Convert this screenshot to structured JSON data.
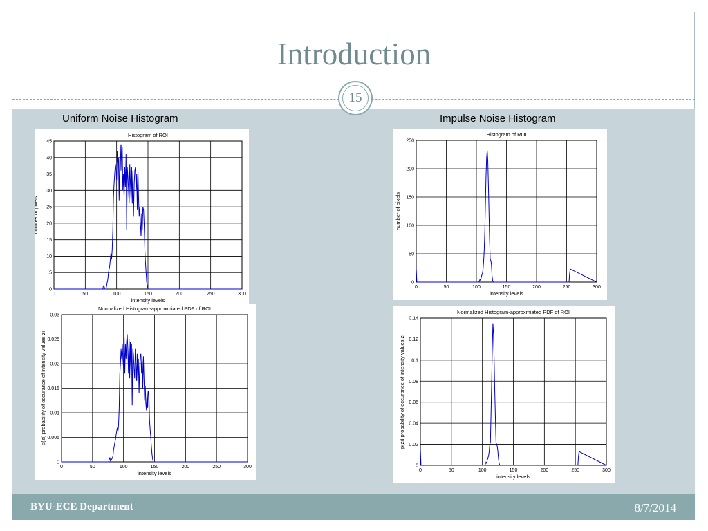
{
  "slide": {
    "title": "Introduction",
    "slide_number": "15",
    "footer_left": "BYU-ECE Department",
    "footer_right": "8/7/2014"
  },
  "panels": {
    "left_title": "Uniform Noise Histogram",
    "right_title": "Impulse Noise Histogram"
  },
  "colors": {
    "accent": "#8aa9ad",
    "title": "#6f8b90",
    "content_bg": "#c7d4d9",
    "series": "#0000cc"
  },
  "chart_data": [
    {
      "type": "line",
      "title": "Histogram of ROI",
      "xlabel": "intensity levels",
      "ylabel": "number of pixels",
      "xlim": [
        0,
        300
      ],
      "ylim": [
        0,
        45
      ],
      "xticks": [
        0,
        50,
        100,
        150,
        200,
        250,
        300
      ],
      "yticks": [
        0,
        5,
        10,
        15,
        20,
        25,
        30,
        35,
        40,
        45
      ],
      "grid": true,
      "series": [
        {
          "x": [
            0,
            78,
            79,
            80,
            81,
            83,
            84,
            85,
            86,
            87,
            88,
            89,
            90,
            91,
            92,
            93,
            94,
            95,
            96,
            97,
            98,
            99,
            100,
            101,
            102,
            103,
            104,
            105,
            106,
            107,
            108,
            109,
            110,
            111,
            112,
            113,
            114,
            115,
            116,
            117,
            118,
            119,
            120,
            121,
            122,
            123,
            124,
            125,
            126,
            127,
            128,
            129,
            130,
            131,
            132,
            133,
            134,
            135,
            136,
            137,
            138,
            139,
            140,
            141,
            142,
            143,
            144,
            145,
            146,
            147,
            148,
            149,
            150,
            151,
            300
          ],
          "y": [
            0,
            0,
            1,
            1,
            0,
            0,
            1,
            2,
            3,
            5,
            6,
            7,
            9,
            11,
            9,
            12,
            18,
            28,
            32,
            35,
            38,
            36,
            33,
            42,
            38,
            40,
            27,
            39,
            44,
            36,
            44,
            43,
            30,
            35,
            28,
            37,
            31,
            41,
            18,
            37,
            34,
            30,
            26,
            38,
            32,
            27,
            37,
            26,
            36,
            22,
            32,
            36,
            37,
            30,
            35,
            24,
            36,
            28,
            22,
            25,
            20,
            16,
            23,
            18,
            25,
            24,
            19,
            12,
            8,
            5,
            2,
            1,
            0,
            0,
            0
          ]
        }
      ]
    },
    {
      "type": "line",
      "title": "Normalized Histogram-approxmiated PDF of ROI",
      "xlabel": "intensity levels",
      "ylabel": "p(zi) probability of occurance of intensity values zi",
      "xlim": [
        0,
        300
      ],
      "ylim": [
        0,
        0.03
      ],
      "xticks": [
        0,
        50,
        100,
        150,
        200,
        250,
        300
      ],
      "yticks": [
        0,
        0.005,
        0.01,
        0.015,
        0.02,
        0.025,
        0.03
      ],
      "ytick_labels": [
        "0",
        "0.005",
        "0.01",
        "0.015",
        "0.02",
        "0.025",
        "0.03"
      ],
      "grid": true,
      "series": [
        {
          "x": [
            0,
            76,
            77,
            78,
            79,
            80,
            82,
            83,
            84,
            85,
            86,
            87,
            88,
            89,
            90,
            91,
            92,
            93,
            94,
            95,
            96,
            97,
            98,
            99,
            100,
            101,
            102,
            103,
            104,
            105,
            106,
            107,
            108,
            109,
            110,
            111,
            112,
            113,
            114,
            115,
            116,
            117,
            118,
            119,
            120,
            121,
            122,
            123,
            124,
            125,
            126,
            127,
            128,
            129,
            130,
            131,
            132,
            133,
            134,
            135,
            136,
            137,
            138,
            139,
            140,
            141,
            142,
            143,
            144,
            145,
            146,
            147,
            148,
            149,
            150,
            151,
            300
          ],
          "y": [
            0,
            0,
            0.0005,
            0.0008,
            0.0002,
            0.0003,
            0.0008,
            0.0012,
            0.0025,
            0.0032,
            0.004,
            0.0045,
            0.0055,
            0.0062,
            0.007,
            0.0062,
            0.0075,
            0.011,
            0.018,
            0.02,
            0.023,
            0.021,
            0.024,
            0.021,
            0.019,
            0.0255,
            0.018,
            0.024,
            0.021,
            0.0245,
            0.026,
            0.023,
            0.018,
            0.025,
            0.017,
            0.0245,
            0.019,
            0.024,
            0.0115,
            0.023,
            0.022,
            0.019,
            0.017,
            0.023,
            0.02,
            0.0165,
            0.022,
            0.0165,
            0.021,
            0.014,
            0.019,
            0.0215,
            0.022,
            0.018,
            0.021,
            0.015,
            0.0215,
            0.017,
            0.0125,
            0.0155,
            0.012,
            0.0105,
            0.0145,
            0.011,
            0.0145,
            0.0135,
            0.0085,
            0.0065,
            0.005,
            0.003,
            0.0015,
            0.0005,
            0,
            0,
            0,
            0,
            0
          ]
        }
      ]
    },
    {
      "type": "line",
      "title": "Histogram of ROI",
      "xlabel": "intensity levels",
      "ylabel": "number of pixels",
      "xlim": [
        0,
        300
      ],
      "ylim": [
        0,
        250
      ],
      "xticks": [
        0,
        50,
        100,
        150,
        200,
        250,
        300
      ],
      "yticks": [
        0,
        50,
        100,
        150,
        200,
        250
      ],
      "grid": true,
      "series": [
        {
          "x": [
            0,
            1,
            2,
            3,
            104,
            105,
            106,
            107,
            108,
            109,
            110,
            111,
            112,
            113,
            114,
            115,
            116,
            117,
            118,
            119,
            120,
            121,
            122,
            123,
            124,
            125,
            126,
            127,
            128,
            129,
            254,
            255,
            256,
            300
          ],
          "y": [
            25,
            0,
            0,
            0,
            0,
            2,
            5,
            3,
            8,
            12,
            15,
            22,
            35,
            55,
            90,
            140,
            185,
            220,
            232,
            215,
            170,
            120,
            75,
            40,
            38,
            30,
            12,
            3,
            0,
            0,
            0,
            14,
            23,
            0
          ]
        }
      ]
    },
    {
      "type": "line",
      "title": "Normalized Histogram-approxmiated PDF of ROI",
      "xlabel": "intensity levels",
      "ylabel": "p(zi) probability of occurance of intensity values zi",
      "xlim": [
        0,
        300
      ],
      "ylim": [
        0,
        0.14
      ],
      "xticks": [
        0,
        50,
        100,
        150,
        200,
        250,
        300
      ],
      "yticks": [
        0,
        0.02,
        0.04,
        0.06,
        0.08,
        0.1,
        0.12,
        0.14
      ],
      "ytick_labels": [
        "0",
        "0.02",
        "0.04",
        "0.06",
        "0.08",
        "0.1",
        "0.12",
        "0.14"
      ],
      "grid": true,
      "series": [
        {
          "x": [
            0,
            1,
            2,
            3,
            104,
            105,
            106,
            107,
            108,
            109,
            110,
            111,
            112,
            113,
            114,
            115,
            116,
            117,
            118,
            119,
            120,
            121,
            122,
            123,
            124,
            125,
            126,
            127,
            128,
            129,
            254,
            255,
            256,
            300
          ],
          "y": [
            0.016,
            0,
            0,
            0,
            0,
            0.0015,
            0.003,
            0.002,
            0.005,
            0.007,
            0.009,
            0.013,
            0.02,
            0.022,
            0.05,
            0.08,
            0.11,
            0.135,
            0.125,
            0.1,
            0.07,
            0.045,
            0.022,
            0.02,
            0.018,
            0.013,
            0.006,
            0.002,
            0,
            0,
            0,
            0.008,
            0.013,
            0
          ]
        }
      ]
    }
  ]
}
